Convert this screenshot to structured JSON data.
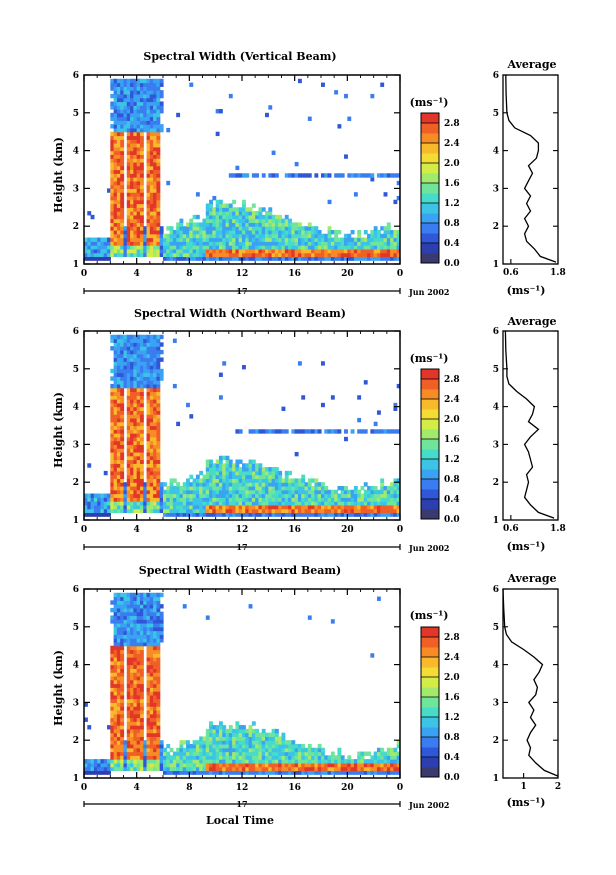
{
  "figure": {
    "date_label": "Jun 2002",
    "day_label": "17",
    "xlabel": "Local Time",
    "ylabel": "Height (km)",
    "colorbar_unit": "(ms⁻¹)",
    "avg_title": "Average",
    "avg_xlabel": "(ms⁻¹)"
  },
  "colors": {
    "scale": [
      "#3a3a6e",
      "#2d3fae",
      "#2f57d8",
      "#3a7df0",
      "#3aa2f2",
      "#3cc4e6",
      "#47dbc9",
      "#6ee59b",
      "#a2ea6c",
      "#d3ec48",
      "#f3dc33",
      "#f8b92c",
      "#f78c27",
      "#f06026",
      "#e23628"
    ]
  },
  "chart_data": [
    {
      "type": "heatmap",
      "title": "Spectral Width (Vertical Beam)",
      "x_ticks": [
        "0",
        "4",
        "8",
        "12",
        "16",
        "20",
        "0"
      ],
      "y_ticks": [
        "1",
        "2",
        "3",
        "4",
        "5",
        "6"
      ],
      "xlim": [
        0,
        24
      ],
      "ylim": [
        1,
        6
      ],
      "colorbar": {
        "min": 0.0,
        "max": 3.0,
        "ticks": [
          "0.0",
          "0.4",
          "0.8",
          "1.2",
          "1.6",
          "2.0",
          "2.4",
          "2.8"
        ]
      },
      "description_fields": {
        "convective_columns": [
          [
            2.0,
            2.8
          ],
          [
            3.2,
            4.4
          ],
          [
            4.6,
            5.6
          ]
        ],
        "column_top_km": 5.8,
        "boundary_layer_top_km": 2.0,
        "upper_layer_km": 3.3
      },
      "average": {
        "x_ticks": [
          "0.6",
          "1.8"
        ],
        "xlim": [
          0.4,
          1.8
        ],
        "profile": [
          [
            1.05,
            1.75
          ],
          [
            1.2,
            1.35
          ],
          [
            1.4,
            1.2
          ],
          [
            1.6,
            1.0
          ],
          [
            1.8,
            0.95
          ],
          [
            2.0,
            1.05
          ],
          [
            2.2,
            0.95
          ],
          [
            2.4,
            1.1
          ],
          [
            2.6,
            1.0
          ],
          [
            2.8,
            1.1
          ],
          [
            3.0,
            0.95
          ],
          [
            3.2,
            1.05
          ],
          [
            3.4,
            1.15
          ],
          [
            3.6,
            1.05
          ],
          [
            3.8,
            1.25
          ],
          [
            4.0,
            1.3
          ],
          [
            4.2,
            1.3
          ],
          [
            4.4,
            1.1
          ],
          [
            4.6,
            0.7
          ],
          [
            4.8,
            0.55
          ],
          [
            5.0,
            0.5
          ],
          [
            5.5,
            0.48
          ],
          [
            6.0,
            0.47
          ]
        ]
      }
    },
    {
      "type": "heatmap",
      "title": "Spectral Width (Northward Beam)",
      "x_ticks": [
        "0",
        "4",
        "8",
        "12",
        "16",
        "20",
        "0"
      ],
      "y_ticks": [
        "1",
        "2",
        "3",
        "4",
        "5",
        "6"
      ],
      "xlim": [
        0,
        24
      ],
      "ylim": [
        1,
        6
      ],
      "colorbar": {
        "min": 0.0,
        "max": 3.0,
        "ticks": [
          "0.0",
          "0.4",
          "0.8",
          "1.2",
          "1.6",
          "2.0",
          "2.4",
          "2.8"
        ]
      },
      "description_fields": {
        "convective_columns": [
          [
            2.0,
            2.8
          ],
          [
            3.2,
            4.4
          ],
          [
            4.6,
            5.6
          ]
        ],
        "column_top_km": 5.8,
        "boundary_layer_top_km": 2.0,
        "upper_layer_km": 3.3
      },
      "average": {
        "x_ticks": [
          "0.6",
          "1.8"
        ],
        "xlim": [
          0.4,
          1.8
        ],
        "profile": [
          [
            1.05,
            1.7
          ],
          [
            1.2,
            1.3
          ],
          [
            1.4,
            1.1
          ],
          [
            1.6,
            0.95
          ],
          [
            1.8,
            1.0
          ],
          [
            2.0,
            1.05
          ],
          [
            2.2,
            1.0
          ],
          [
            2.4,
            1.15
          ],
          [
            2.6,
            1.1
          ],
          [
            2.8,
            1.05
          ],
          [
            3.0,
            0.95
          ],
          [
            3.2,
            1.1
          ],
          [
            3.4,
            1.3
          ],
          [
            3.6,
            1.05
          ],
          [
            3.8,
            1.15
          ],
          [
            4.0,
            1.2
          ],
          [
            4.2,
            1.0
          ],
          [
            4.4,
            0.75
          ],
          [
            4.6,
            0.55
          ],
          [
            4.8,
            0.5
          ],
          [
            5.0,
            0.5
          ],
          [
            5.5,
            0.47
          ],
          [
            6.0,
            0.46
          ]
        ]
      }
    },
    {
      "type": "heatmap",
      "title": "Spectral Width (Eastward Beam)",
      "x_ticks": [
        "0",
        "4",
        "8",
        "12",
        "16",
        "20",
        "0"
      ],
      "y_ticks": [
        "1",
        "2",
        "3",
        "4",
        "5",
        "6"
      ],
      "xlim": [
        0,
        24
      ],
      "ylim": [
        1,
        6
      ],
      "colorbar": {
        "min": 0.0,
        "max": 3.0,
        "ticks": [
          "0.0",
          "0.4",
          "0.8",
          "1.2",
          "1.6",
          "2.0",
          "2.4",
          "2.8"
        ]
      },
      "description_fields": {
        "convective_columns": [
          [
            2.0,
            2.8
          ],
          [
            3.2,
            4.4
          ],
          [
            4.6,
            5.6
          ]
        ],
        "column_top_km": 5.8,
        "boundary_layer_top_km": 1.8,
        "upper_layer_km": null
      },
      "average": {
        "x_ticks": [
          "1",
          "2"
        ],
        "xlim": [
          0.4,
          2.0
        ],
        "profile": [
          [
            1.05,
            2.0
          ],
          [
            1.2,
            1.6
          ],
          [
            1.4,
            1.35
          ],
          [
            1.6,
            1.15
          ],
          [
            1.8,
            1.2
          ],
          [
            2.0,
            1.1
          ],
          [
            2.2,
            1.2
          ],
          [
            2.4,
            1.35
          ],
          [
            2.6,
            1.2
          ],
          [
            2.8,
            1.3
          ],
          [
            3.0,
            1.15
          ],
          [
            3.2,
            1.35
          ],
          [
            3.4,
            1.4
          ],
          [
            3.6,
            1.3
          ],
          [
            3.8,
            1.45
          ],
          [
            4.0,
            1.55
          ],
          [
            4.2,
            1.3
          ],
          [
            4.4,
            1.0
          ],
          [
            4.6,
            0.65
          ],
          [
            4.8,
            0.5
          ],
          [
            5.0,
            0.45
          ],
          [
            5.5,
            0.42
          ],
          [
            6.0,
            0.4
          ]
        ]
      }
    }
  ]
}
